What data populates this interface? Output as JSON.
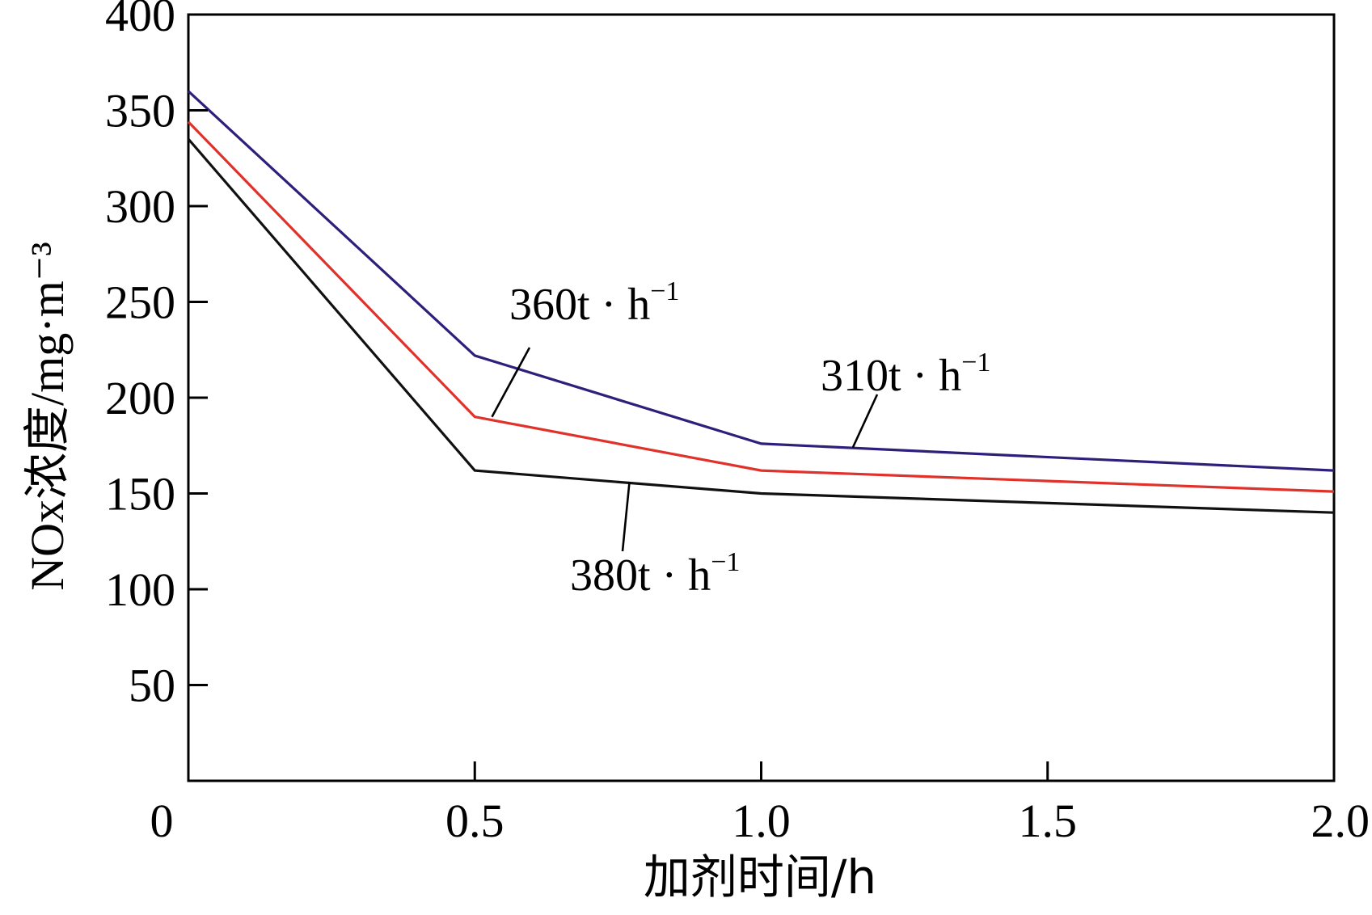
{
  "chart_data": {
    "type": "line",
    "title": "",
    "xlabel": "加剂时间/h",
    "ylabel": "NOx浓度/mg·m⁻³",
    "xlim": [
      0,
      2.0
    ],
    "ylim": [
      0,
      400
    ],
    "xticks": [
      0,
      0.5,
      1.0,
      1.5,
      2.0
    ],
    "xtick_labels": [
      "0",
      "0.5",
      "1.0",
      "1.5",
      "2.0"
    ],
    "yticks": [
      50,
      100,
      150,
      200,
      250,
      300,
      350,
      400
    ],
    "ytick_labels": [
      "50",
      "100",
      "150",
      "200",
      "250",
      "300",
      "350",
      "400"
    ],
    "grid": false,
    "legend": "none",
    "x": [
      0,
      0.5,
      1.0,
      2.0
    ],
    "series": [
      {
        "name": "310t·h⁻¹",
        "values": [
          360,
          222,
          176,
          162
        ],
        "color": "#2e1f7a"
      },
      {
        "name": "360t·h⁻¹",
        "values": [
          344,
          190,
          162,
          151
        ],
        "color": "#e0312b"
      },
      {
        "name": "380t·h⁻¹",
        "values": [
          335,
          162,
          150,
          140
        ],
        "color": "#111111"
      }
    ],
    "annotations": [
      {
        "series": "360t·h⁻¹",
        "text": "360t · h",
        "sup": "−1",
        "at_x": 0.53,
        "at_y": 190
      },
      {
        "series": "310t·h⁻¹",
        "text": "310t · h",
        "sup": "−1",
        "at_x": 1.16,
        "at_y": 174
      },
      {
        "series": "380t·h⁻¹",
        "text": "380t · h",
        "sup": "−1",
        "at_x": 0.77,
        "at_y": 156
      }
    ]
  }
}
